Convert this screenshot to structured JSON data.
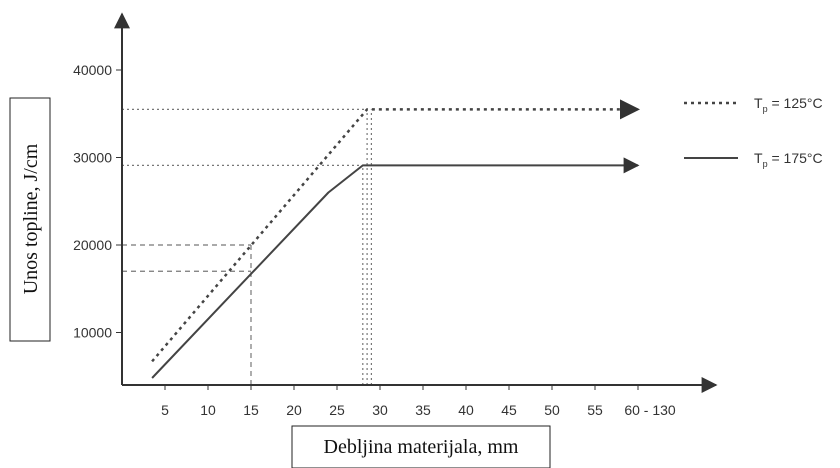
{
  "chart_data": {
    "type": "line",
    "title": "",
    "xlabel": "Debljina materijala, mm",
    "ylabel": "Unos topline, J/cm",
    "x_tick_labels": [
      "5",
      "10",
      "15",
      "20",
      "25",
      "30",
      "35",
      "40",
      "45",
      "50",
      "55",
      "60 - 130"
    ],
    "y_tick_labels": [
      "10000",
      "20000",
      "30000",
      "40000"
    ],
    "xlim": [
      2,
      70
    ],
    "ylim": [
      4000,
      45000
    ],
    "grid": false,
    "legend_position": "right",
    "series": [
      {
        "name": "Tp = 125°C",
        "legend_main": "T",
        "legend_sub": "p",
        "legend_rest": " = 125°C",
        "line_style": "dotted",
        "color": "#444444",
        "points": [
          [
            3.5,
            6700
          ],
          [
            28.5,
            35500
          ],
          [
            60,
            35500
          ]
        ]
      },
      {
        "name": "Tp = 175°C",
        "legend_main": "T",
        "legend_sub": "p",
        "legend_rest": " = 175°C",
        "line_style": "solid",
        "color": "#444444",
        "points": [
          [
            3.5,
            4800
          ],
          [
            24,
            26000
          ],
          [
            28,
            29100
          ],
          [
            60,
            29100
          ]
        ]
      }
    ],
    "reference_lines": [
      {
        "style": "dashed",
        "from": [
          0,
          20000
        ],
        "to": [
          15,
          20000
        ]
      },
      {
        "style": "dashed",
        "from": [
          0,
          17000
        ],
        "to": [
          15,
          17000
        ]
      },
      {
        "style": "dashed",
        "from": [
          15,
          4000
        ],
        "to": [
          15,
          20000
        ]
      },
      {
        "style": "dotted",
        "from": [
          0,
          35500
        ],
        "to": [
          28.5,
          35500
        ]
      },
      {
        "style": "dotted",
        "from": [
          0,
          29100
        ],
        "to": [
          28,
          29100
        ]
      },
      {
        "style": "dotted",
        "from": [
          28,
          4000
        ],
        "to": [
          28,
          29100
        ]
      },
      {
        "style": "dotted",
        "from": [
          28.5,
          4000
        ],
        "to": [
          28.5,
          35500
        ]
      },
      {
        "style": "dotted",
        "from": [
          29,
          4000
        ],
        "to": [
          29,
          35500
        ]
      }
    ]
  }
}
